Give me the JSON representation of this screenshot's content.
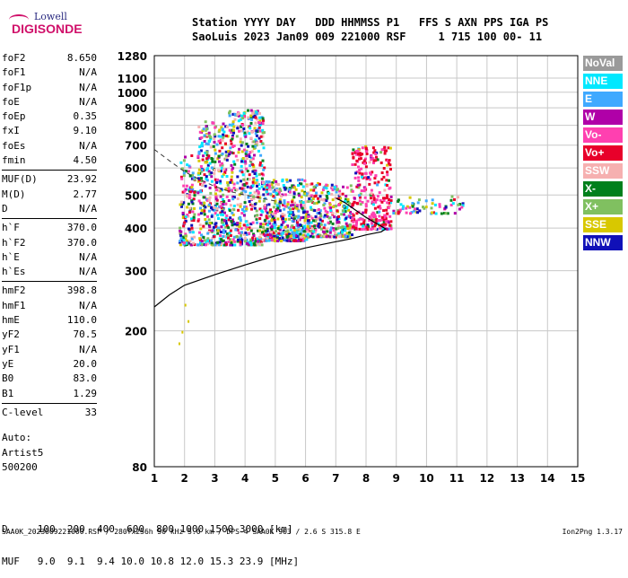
{
  "logo": {
    "line1": "Lowell",
    "line2": "DIGISONDE"
  },
  "header": {
    "labels": "Station YYYY DAY   DDD HHMMSS P1   FFS S AXN PPS IGA PS",
    "values": "SaoLuis 2023 Jan09 009 221000 RSF     1 715 100 00- 11"
  },
  "params": {
    "group1": [
      {
        "name": "foF2",
        "value": "8.650"
      },
      {
        "name": "foF1",
        "value": "N/A"
      },
      {
        "name": "foF1p",
        "value": "N/A"
      },
      {
        "name": "foE",
        "value": "N/A"
      },
      {
        "name": "foEp",
        "value": "0.35"
      },
      {
        "name": "fxI",
        "value": "9.10"
      },
      {
        "name": "foEs",
        "value": "N/A"
      },
      {
        "name": "fmin",
        "value": "4.50"
      }
    ],
    "group2": [
      {
        "name": "MUF(D)",
        "value": "23.92"
      },
      {
        "name": "M(D)",
        "value": "2.77"
      },
      {
        "name": "D",
        "value": "N/A"
      }
    ],
    "group3": [
      {
        "name": "h`F",
        "value": "370.0"
      },
      {
        "name": "h`F2",
        "value": "370.0"
      },
      {
        "name": "h`E",
        "value": "N/A"
      },
      {
        "name": "h`Es",
        "value": "N/A"
      }
    ],
    "group4": [
      {
        "name": "hmF2",
        "value": "398.8"
      },
      {
        "name": "hmF1",
        "value": "N/A"
      },
      {
        "name": "hmE",
        "value": "110.0"
      },
      {
        "name": "yF2",
        "value": "70.5"
      },
      {
        "name": "yF1",
        "value": "N/A"
      },
      {
        "name": "yE",
        "value": "20.0"
      },
      {
        "name": "B0",
        "value": "83.0"
      },
      {
        "name": "B1",
        "value": "1.29"
      }
    ],
    "group5": [
      {
        "name": "C-level",
        "value": "33"
      }
    ]
  },
  "auto": {
    "line1": "Auto:",
    "line2": "Artist5",
    "line3": "500200"
  },
  "legend": [
    {
      "label": "NoVal",
      "color": "#9a9a9a"
    },
    {
      "label": "NNE",
      "color": "#00e8ff"
    },
    {
      "label": "E",
      "color": "#3fa9ff"
    },
    {
      "label": "W",
      "color": "#b000a8"
    },
    {
      "label": "Vo-",
      "color": "#ff40b0"
    },
    {
      "label": "Vo+",
      "color": "#e8002a"
    },
    {
      "label": "SSW",
      "color": "#f6b0b0"
    },
    {
      "label": "X-",
      "color": "#00801c"
    },
    {
      "label": "X+",
      "color": "#80c060"
    },
    {
      "label": "SSE",
      "color": "#d8c800"
    },
    {
      "label": "NNW",
      "color": "#1010b8"
    }
  ],
  "bottom": {
    "d_row": "D     100  200  400  600  800 1000 1500 3000 [km]",
    "muf_row": "MUF   9.0  9.1  9.4 10.0 10.8 12.0 15.3 23.9 [MHz]"
  },
  "footer": {
    "left": "SAA0K_2023009221000.RSF / 280fx256h 50 kHz 5.0 km / DPS-4 SAA0K 903 / 2.6 S 315.8 E",
    "right": "Ion2Png 1.3.17"
  },
  "chart_data": {
    "type": "scatter",
    "xlim": [
      1,
      15
    ],
    "ylim": [
      80,
      1280
    ],
    "x_ticks": [
      1,
      2,
      3,
      4,
      5,
      6,
      7,
      8,
      9,
      10,
      11,
      12,
      13,
      14,
      15
    ],
    "y_ticks": [
      80,
      200,
      300,
      400,
      500,
      600,
      700,
      800,
      900,
      1000,
      1100,
      1280
    ],
    "y_scale": "log",
    "grid": true,
    "solid_curve": [
      [
        1.0,
        235
      ],
      [
        1.5,
        255
      ],
      [
        2.0,
        272
      ],
      [
        3.0,
        292
      ],
      [
        4.0,
        312
      ],
      [
        5.0,
        332
      ],
      [
        6.0,
        350
      ],
      [
        7.0,
        365
      ],
      [
        7.5,
        372
      ],
      [
        8.0,
        382
      ],
      [
        8.5,
        390
      ],
      [
        8.65,
        398
      ],
      [
        8.4,
        410
      ],
      [
        8.0,
        430
      ],
      [
        7.6,
        455
      ],
      [
        7.3,
        475
      ],
      [
        7.0,
        490
      ]
    ],
    "dashed_curve": [
      [
        1.0,
        680
      ],
      [
        1.5,
        630
      ],
      [
        2.0,
        585
      ],
      [
        2.5,
        555
      ],
      [
        3.0,
        530
      ],
      [
        3.5,
        512
      ],
      [
        4.0,
        500
      ],
      [
        4.5,
        490
      ],
      [
        5.0,
        480
      ]
    ],
    "echo_clusters": [
      {
        "x": [
          1.8,
          2.3
        ],
        "y": [
          360,
          660
        ],
        "direction": "mixed"
      },
      {
        "x": [
          2.4,
          3.4
        ],
        "y": [
          360,
          830
        ],
        "direction": "mixed"
      },
      {
        "x": [
          3.4,
          4.6
        ],
        "y": [
          360,
          900
        ],
        "direction": "mixed"
      },
      {
        "x": [
          4.6,
          6.0
        ],
        "y": [
          370,
          560
        ],
        "direction": "mixed"
      },
      {
        "x": [
          6.0,
          7.5
        ],
        "y": [
          380,
          550
        ],
        "direction": "mixed"
      },
      {
        "x": [
          7.5,
          8.8
        ],
        "y": [
          400,
          700
        ],
        "direction": "Vo-/Vo+"
      },
      {
        "x": [
          8.8,
          11.2
        ],
        "y": [
          445,
          500
        ],
        "direction": "mixed"
      }
    ],
    "sparse_low_echoes": [
      [
        1.9,
        200
      ],
      [
        2.0,
        240
      ],
      [
        1.8,
        185
      ],
      [
        2.1,
        215
      ]
    ]
  }
}
